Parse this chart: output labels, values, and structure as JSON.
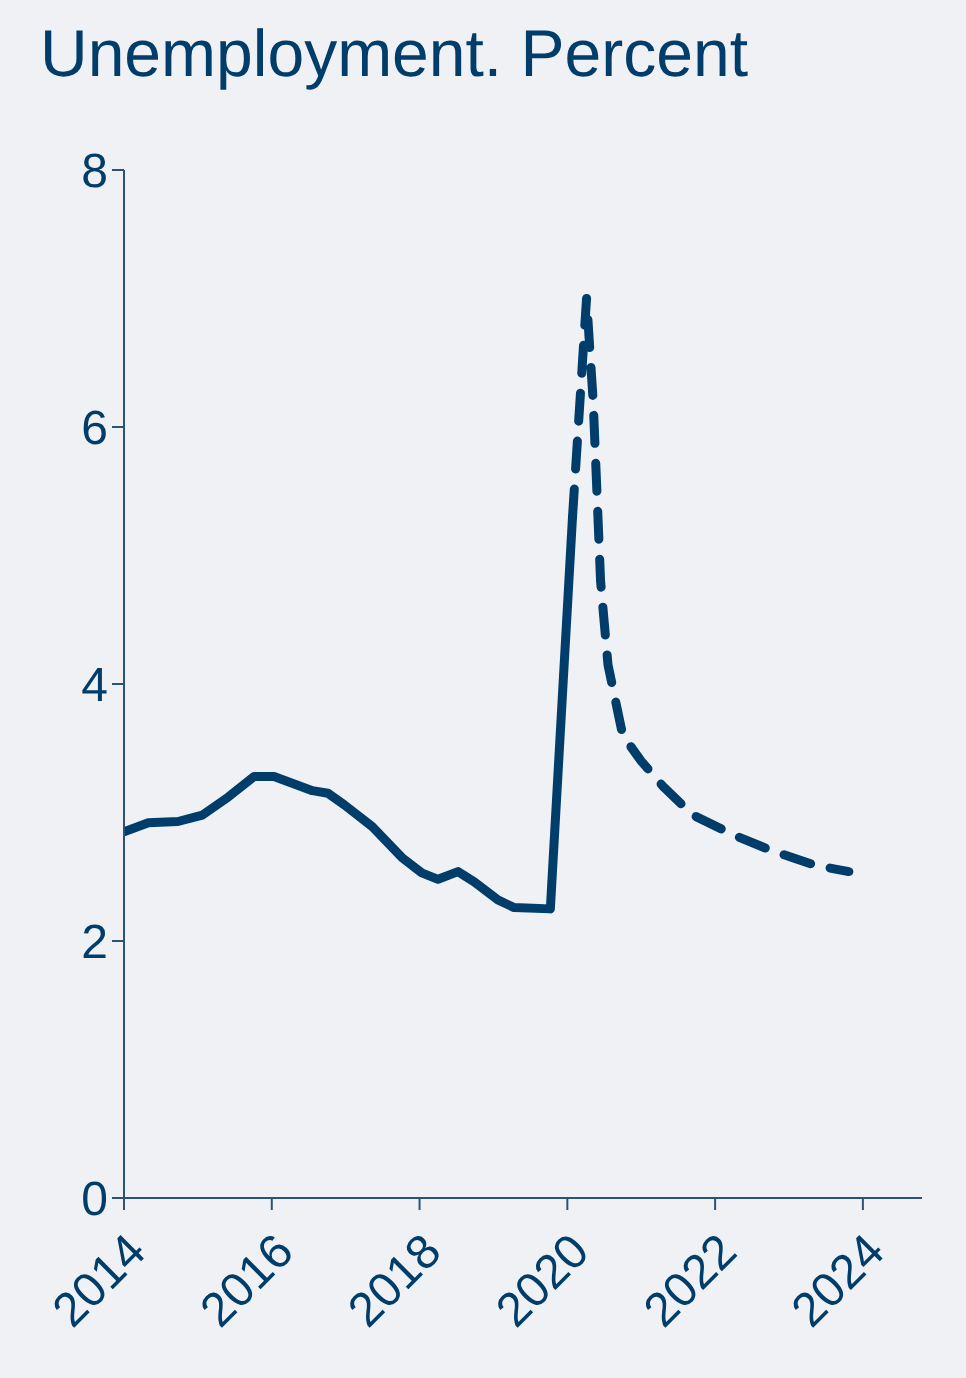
{
  "chart_data": {
    "type": "line",
    "title": "Unemployment. Percent",
    "xlim": [
      2014,
      2024.8
    ],
    "xticks": [
      2014,
      2016,
      2018,
      2020,
      2022,
      2024
    ],
    "ylim": [
      0,
      8
    ],
    "yticks": [
      0,
      2,
      4,
      6,
      8
    ],
    "marker": "none",
    "series": [
      {
        "color": "#003d6b",
        "line_style": "solid",
        "x": [
          2014,
          2014.33,
          2014.73,
          2015.06,
          2015.41,
          2015.76,
          2016.03,
          2016.55,
          2016.76,
          2016.98,
          2017.36,
          2017.76,
          2018.03,
          2018.25,
          2018.52,
          2018.74,
          2019.06,
          2019.28,
          2019.77,
          2020.07
        ],
        "values": [
          2.85,
          2.92,
          2.93,
          2.98,
          3.12,
          3.28,
          3.28,
          3.17,
          3.15,
          3.06,
          2.89,
          2.65,
          2.53,
          2.48,
          2.54,
          2.46,
          2.32,
          2.26,
          2.25,
          5.3
        ]
      },
      {
        "color": "#003d6b",
        "line_style": "dashed",
        "x": [
          2020.07,
          2020.26,
          2020.35,
          2020.45,
          2020.55,
          2020.75,
          2021.0,
          2021.3,
          2021.7,
          2022.27,
          2022.78,
          2023.35,
          2023.81
        ],
        "values": [
          5.3,
          7.0,
          6.2,
          4.8,
          4.15,
          3.6,
          3.4,
          3.2,
          2.98,
          2.82,
          2.7,
          2.59,
          2.54
        ]
      }
    ]
  }
}
